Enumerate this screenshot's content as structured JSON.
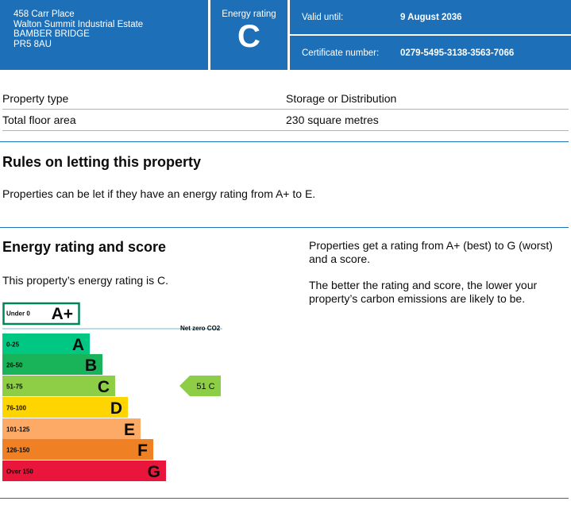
{
  "header": {
    "address_lines": [
      "458 Carr Place",
      "Walton Summit Industrial Estate",
      "BAMBER BRIDGE",
      "PR5 8AU"
    ],
    "rating_label": "Energy rating",
    "rating_letter": "C",
    "valid_until_label": "Valid until:",
    "valid_until_value": "9 August 2036",
    "certificate_label": "Certificate number:",
    "certificate_value": "0279-5495-3138-3563-7066"
  },
  "property": {
    "rows": [
      {
        "label": "Property type",
        "value": "Storage or Distribution"
      },
      {
        "label": "Total floor area",
        "value": "230 square metres"
      }
    ]
  },
  "letting": {
    "heading": "Rules on letting this property",
    "text": "Properties can be let if they have an energy rating from A+ to E."
  },
  "energy": {
    "heading": "Energy rating and score",
    "intro": "This property’s energy rating is C.",
    "info_1": "Properties get a rating from A+ (best) to G (worst) and a score.",
    "info_2": "The better the rating and score, the lower your property’s carbon emissions are likely to be."
  },
  "chart_data": {
    "type": "bar",
    "bands": [
      {
        "range": "Under 0",
        "letter": "A+",
        "color": "#ffffff",
        "border": "#00855a"
      },
      {
        "range": "0-25",
        "letter": "A",
        "color": "#00c781"
      },
      {
        "range": "26-50",
        "letter": "B",
        "color": "#19b459"
      },
      {
        "range": "51-75",
        "letter": "C",
        "color": "#8dce46"
      },
      {
        "range": "76-100",
        "letter": "D",
        "color": "#ffd500"
      },
      {
        "range": "101-125",
        "letter": "E",
        "color": "#fcaa65"
      },
      {
        "range": "126-150",
        "letter": "F",
        "color": "#ef8023"
      },
      {
        "range": "Over 150",
        "letter": "G",
        "color": "#e9153b"
      }
    ],
    "net_zero_label": "Net zero CO2",
    "current": {
      "score": 51,
      "letter": "C",
      "band_index": 3,
      "label": "51  C"
    }
  }
}
